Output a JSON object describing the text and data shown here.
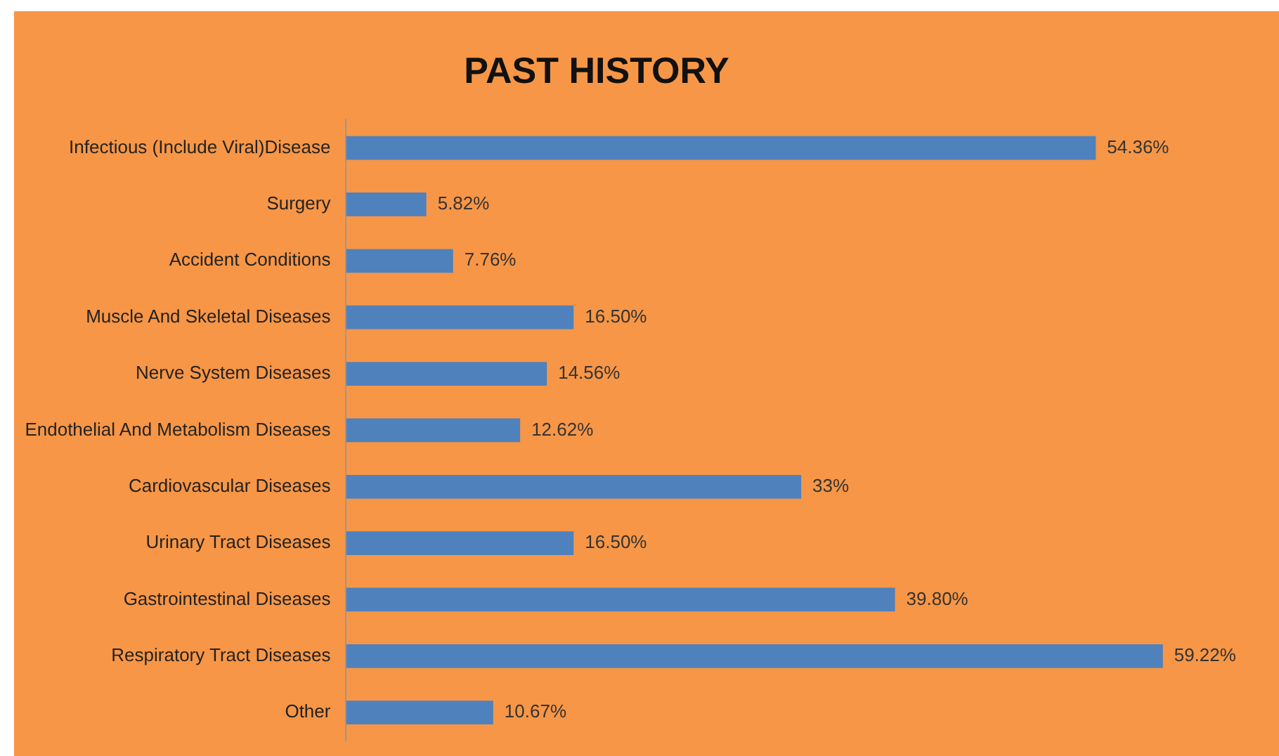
{
  "chart_data": {
    "type": "bar",
    "orientation": "horizontal",
    "title": "PAST HISTORY",
    "categories": [
      "Infectious (Include Viral)Disease",
      "Surgery",
      "Accident Conditions",
      "Muscle And Skeletal Diseases",
      "Nerve System Diseases",
      "Endothelial And Metabolism Diseases",
      "Cardiovascular Diseases",
      "Urinary Tract Diseases",
      "Gastrointestinal Diseases",
      "Respiratory Tract Diseases",
      "Other"
    ],
    "values": [
      54.36,
      5.82,
      7.76,
      16.5,
      14.56,
      12.62,
      33,
      16.5,
      39.8,
      59.22,
      10.67
    ],
    "value_labels": [
      "54.36%",
      "5.82%",
      "7.76%",
      "16.50%",
      "14.56%",
      "12.62%",
      "33%",
      "16.50%",
      "39.80%",
      "59.22%",
      "10.67%"
    ],
    "color": "#4f81bd"
  }
}
